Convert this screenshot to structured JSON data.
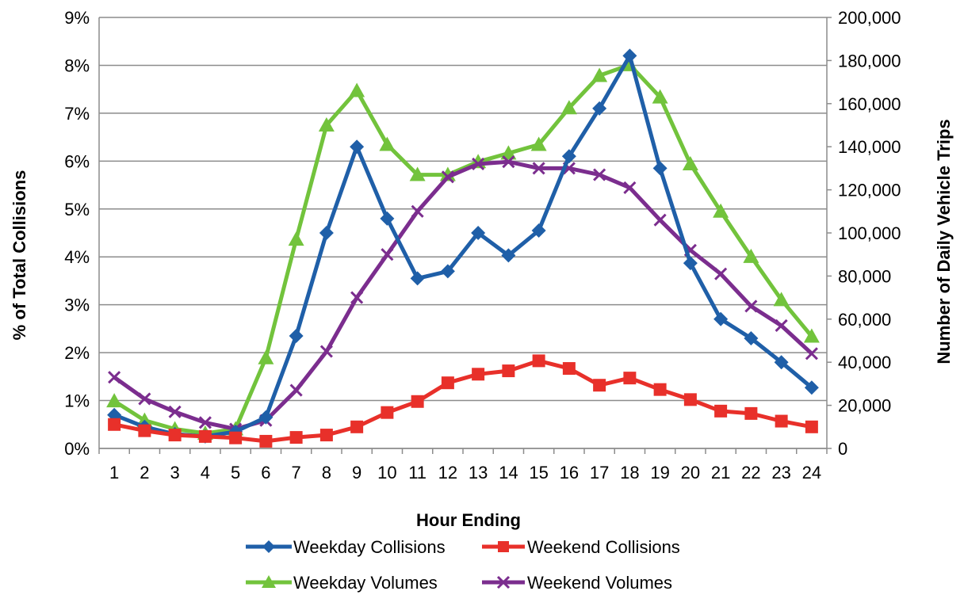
{
  "chart_data": {
    "type": "line",
    "xlabel": "Hour Ending",
    "ylabel_left": "% of Total Collisions",
    "ylabel_right": "Number of Daily Vehicle Trips",
    "x": [
      1,
      2,
      3,
      4,
      5,
      6,
      7,
      8,
      9,
      10,
      11,
      12,
      13,
      14,
      15,
      16,
      17,
      18,
      19,
      20,
      21,
      22,
      23,
      24
    ],
    "x_tick_labels": [
      "1",
      "2",
      "3",
      "4",
      "5",
      "6",
      "7",
      "8",
      "9",
      "10",
      "11",
      "12",
      "13",
      "14",
      "15",
      "16",
      "17",
      "18",
      "19",
      "20",
      "21",
      "22",
      "23",
      "24"
    ],
    "ylim_left": [
      0,
      9
    ],
    "y_tick_labels_left": [
      "0%",
      "1%",
      "2%",
      "3%",
      "4%",
      "5%",
      "6%",
      "7%",
      "8%",
      "9%"
    ],
    "ylim_right": [
      0,
      200000
    ],
    "y_tick_labels_right": [
      "0",
      "20,000",
      "40,000",
      "60,000",
      "80,000",
      "100,000",
      "120,000",
      "140,000",
      "160,000",
      "180,000",
      "200,000"
    ],
    "grid": "horizontal",
    "legend_position": "bottom",
    "series": [
      {
        "name": "Weekday Collisions",
        "axis": "left",
        "marker": "diamond",
        "color": "#1f5fa8",
        "values": [
          0.7,
          0.45,
          0.3,
          0.25,
          0.35,
          0.65,
          2.35,
          4.5,
          6.3,
          4.8,
          3.55,
          3.7,
          4.5,
          4.03,
          4.55,
          6.1,
          7.1,
          8.2,
          5.85,
          3.87,
          2.7,
          2.3,
          1.8,
          1.27
        ]
      },
      {
        "name": "Weekend Collisions",
        "axis": "left",
        "marker": "square",
        "color": "#e8302a",
        "values": [
          0.5,
          0.37,
          0.28,
          0.25,
          0.22,
          0.15,
          0.23,
          0.28,
          0.45,
          0.75,
          0.98,
          1.37,
          1.55,
          1.62,
          1.83,
          1.67,
          1.32,
          1.47,
          1.23,
          1.02,
          0.78,
          0.73,
          0.57,
          0.45
        ]
      },
      {
        "name": "Weekday Volumes",
        "axis": "right",
        "marker": "triangle",
        "color": "#72c33c",
        "values": [
          22000,
          13000,
          9000,
          7000,
          9000,
          42000,
          97000,
          150000,
          166000,
          141000,
          127000,
          127000,
          133000,
          137000,
          141000,
          158000,
          173000,
          178000,
          163000,
          132000,
          110000,
          89000,
          69000,
          52000
        ]
      },
      {
        "name": "Weekend Volumes",
        "axis": "right",
        "marker": "x",
        "color": "#7b2d8e",
        "values": [
          33000,
          23000,
          17000,
          12000,
          9000,
          13000,
          27000,
          45000,
          70000,
          90000,
          110000,
          126000,
          132000,
          133000,
          130000,
          130000,
          127000,
          121000,
          106000,
          92000,
          81000,
          66000,
          57000,
          44000
        ]
      }
    ]
  }
}
